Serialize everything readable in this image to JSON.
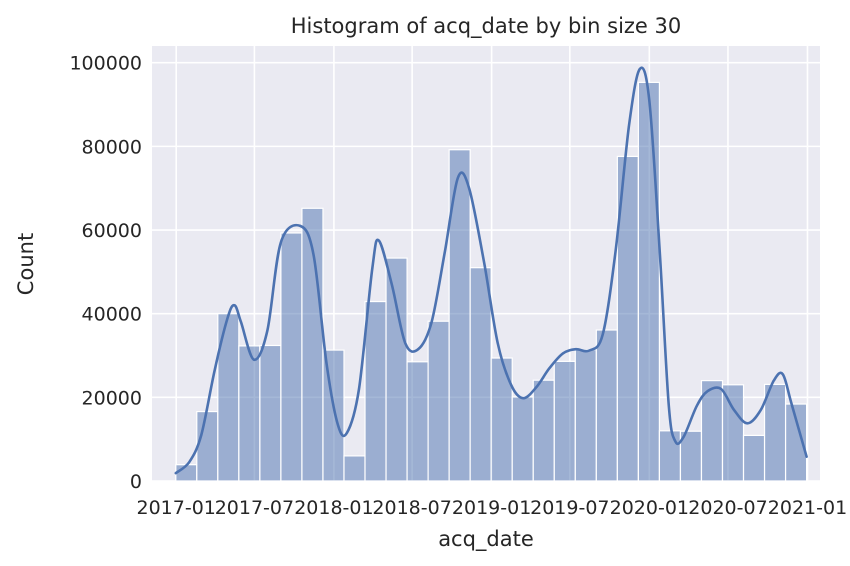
{
  "chart_data": {
    "type": "bar",
    "title": "Histogram of acq_date by bin size 30",
    "xlabel": "acq_date",
    "ylabel": "Count",
    "ylim": [
      0,
      104000
    ],
    "y_ticks": [
      0,
      20000,
      40000,
      60000,
      80000,
      100000
    ],
    "x_ticks": [
      {
        "label": "2017-01",
        "date": "2017-01-01"
      },
      {
        "label": "2017-07",
        "date": "2017-07-01"
      },
      {
        "label": "2018-01",
        "date": "2018-01-01"
      },
      {
        "label": "2018-07",
        "date": "2018-07-01"
      },
      {
        "label": "2019-01",
        "date": "2019-01-01"
      },
      {
        "label": "2019-07",
        "date": "2019-07-01"
      },
      {
        "label": "2020-01",
        "date": "2020-01-01"
      },
      {
        "label": "2020-07",
        "date": "2020-07-01"
      },
      {
        "label": "2021-01",
        "date": "2021-01-01"
      }
    ],
    "xlim": [
      "2016-11-06",
      "2021-01-30"
    ],
    "bin_range": [
      "2016-12-31",
      "2020-12-30"
    ],
    "bins": 30,
    "counts": [
      3900,
      16600,
      40000,
      32300,
      32400,
      59300,
      65200,
      31300,
      6000,
      42900,
      53300,
      28500,
      38200,
      79200,
      51000,
      29400,
      20100,
      24100,
      28600,
      31400,
      36100,
      77600,
      95300,
      12000,
      11900,
      24000,
      23000,
      10900,
      23100,
      18400
    ],
    "kde": [
      [
        "2016-12-31",
        1900
      ],
      [
        "2017-01-31",
        4500
      ],
      [
        "2017-02-28",
        11000
      ],
      [
        "2017-03-31",
        26500
      ],
      [
        "2017-04-30",
        39000
      ],
      [
        "2017-05-16",
        42000
      ],
      [
        "2017-05-31",
        38000
      ],
      [
        "2017-06-30",
        29000
      ],
      [
        "2017-07-31",
        36000
      ],
      [
        "2017-08-31",
        57000
      ],
      [
        "2017-10-15",
        61000
      ],
      [
        "2017-11-15",
        54000
      ],
      [
        "2017-12-15",
        28000
      ],
      [
        "2018-01-10",
        13500
      ],
      [
        "2018-01-31",
        11500
      ],
      [
        "2018-02-28",
        22000
      ],
      [
        "2018-03-31",
        51000
      ],
      [
        "2018-04-15",
        57500
      ],
      [
        "2018-05-15",
        47000
      ],
      [
        "2018-06-15",
        33000
      ],
      [
        "2018-07-15",
        31500
      ],
      [
        "2018-08-15",
        38000
      ],
      [
        "2018-09-15",
        55000
      ],
      [
        "2018-10-15",
        72500
      ],
      [
        "2018-11-10",
        70000
      ],
      [
        "2018-12-15",
        52000
      ],
      [
        "2019-01-15",
        33000
      ],
      [
        "2019-02-15",
        23000
      ],
      [
        "2019-03-15",
        19800
      ],
      [
        "2019-04-15",
        22500
      ],
      [
        "2019-05-15",
        27000
      ],
      [
        "2019-06-15",
        30500
      ],
      [
        "2019-07-15",
        31500
      ],
      [
        "2019-08-15",
        31200
      ],
      [
        "2019-09-15",
        35000
      ],
      [
        "2019-10-15",
        55000
      ],
      [
        "2019-11-15",
        85000
      ],
      [
        "2019-12-10",
        98500
      ],
      [
        "2020-01-01",
        91000
      ],
      [
        "2020-01-25",
        55000
      ],
      [
        "2020-02-15",
        18000
      ],
      [
        "2020-03-01",
        9500
      ],
      [
        "2020-03-20",
        10500
      ],
      [
        "2020-04-20",
        18000
      ],
      [
        "2020-05-15",
        21500
      ],
      [
        "2020-06-15",
        22000
      ],
      [
        "2020-07-15",
        17000
      ],
      [
        "2020-08-15",
        13800
      ],
      [
        "2020-09-15",
        17000
      ],
      [
        "2020-10-15",
        24000
      ],
      [
        "2020-11-05",
        25500
      ],
      [
        "2020-11-25",
        18500
      ],
      [
        "2020-12-30",
        5800
      ]
    ],
    "colors": {
      "bar_fill": "#4c72b0",
      "bar_opacity": 0.5,
      "bar_edge": "#ffffff",
      "kde": "#4c72b0",
      "plot_background": "#eaeaf2",
      "grid": "#ffffff",
      "text": "#262626"
    },
    "grid": true
  }
}
